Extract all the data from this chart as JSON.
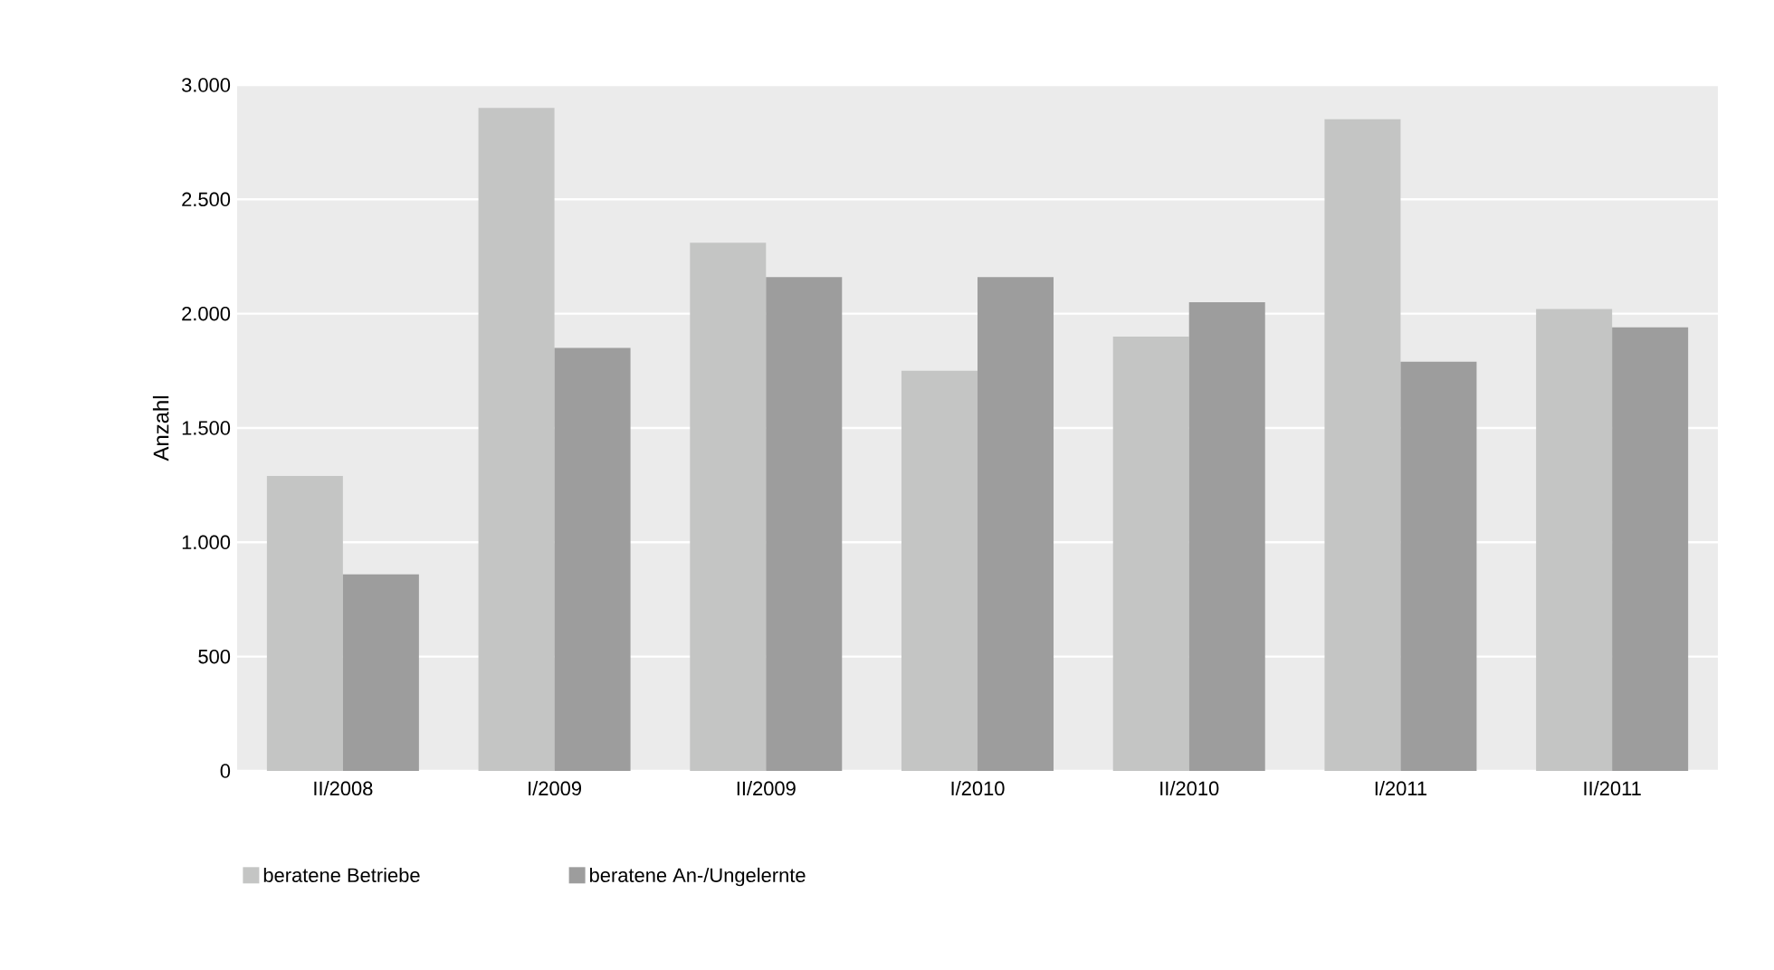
{
  "chart_data": {
    "type": "bar",
    "ylabel": "Anzahl",
    "categories": [
      "II/2008",
      "I/2009",
      "II/2009",
      "I/2010",
      "II/2010",
      "I/2011",
      "II/2011"
    ],
    "series": [
      {
        "name": "beratene Betriebe",
        "color": "#c4c5c4",
        "values": [
          1290,
          2900,
          2310,
          1750,
          1900,
          2850,
          2020
        ]
      },
      {
        "name": "beratene An-/Ungelernte",
        "color": "#9d9d9d",
        "values": [
          860,
          1850,
          2160,
          2160,
          2050,
          1790,
          1940
        ]
      }
    ],
    "ylim": [
      0,
      3000
    ],
    "yticks": [
      0,
      500,
      {
        "value": 1000,
        "label": "1.000"
      },
      {
        "value": 1500,
        "label": "1.500"
      },
      {
        "value": 2000,
        "label": "2.000"
      },
      {
        "value": 2500,
        "label": "2.500"
      },
      {
        "value": 3000,
        "label": "3.000"
      }
    ],
    "grid": "y",
    "legend": "bottom"
  }
}
